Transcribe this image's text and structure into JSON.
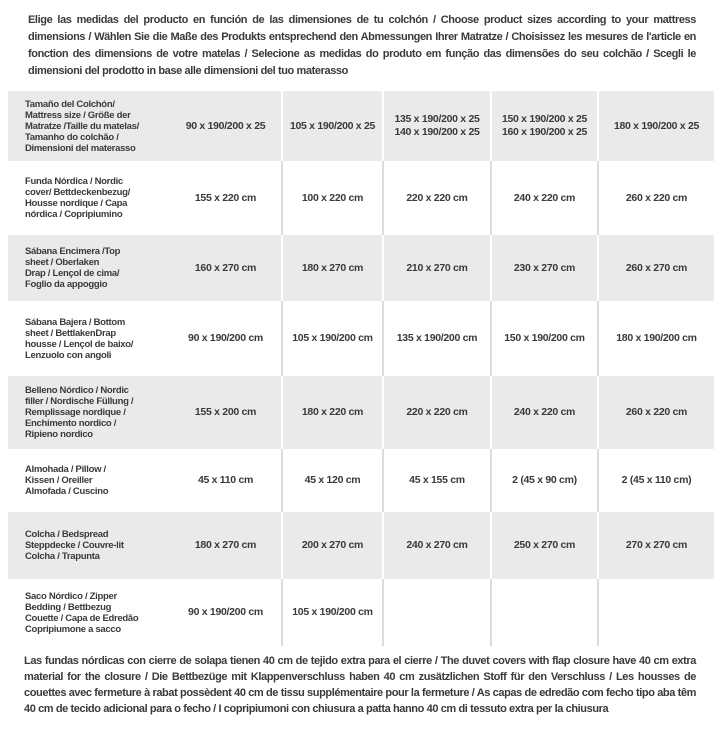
{
  "colors": {
    "row_gray": "#eaeaea",
    "text": "#3a3a3a",
    "divider_on_white": "#dcdcdc",
    "divider_on_gray": "#ffffff",
    "background": "#ffffff"
  },
  "intro": {
    "text": "Elige las medidas del producto en función de las dimensiones de tu colchón / Choose product sizes according to your mattress dimensions / Wählen Sie die Maße des Produkts entsprechend den Abmessungen Ihrer Matratze / Choisissez les mesures de l'article en fonction des dimensions de votre matelas / Selecione as medidas do produto em função das dimensões do seu colchão / Scegli le dimensioni del prodotto in base alle dimensioni del tuo materasso"
  },
  "table": {
    "rows": [
      {
        "label": "Tamaño del Colchón/\nMattress size / Größe der\nMatratze /Taille du matelas/\nTamanho do colchão /\nDimensioni del materasso",
        "values": [
          "90 x 190/200 x 25",
          "105 x 190/200 x 25",
          "135 x 190/200 x 25\n140 x 190/200 x 25",
          "150 x 190/200 x 25\n160 x 190/200 x 25",
          "180 x 190/200 x 25"
        ]
      },
      {
        "label": "Funda Nórdica /  Nordic\ncover/ Bettdeckenbezug/\nHousse nordique  / Capa\nnórdica / Copripiumino",
        "values": [
          "155 x 220 cm",
          "100 x 220 cm",
          "220 x 220 cm",
          "240 x 220 cm",
          "260 x 220 cm"
        ]
      },
      {
        "label": "Sábana Encimera /Top\nsheet / Oberlaken\nDrap / Lençol de cima/\nFoglio da appoggio",
        "values": [
          "160 x 270 cm",
          "180 x 270 cm",
          "210 x 270 cm",
          "230 x 270 cm",
          "260 x 270 cm"
        ]
      },
      {
        "label": "Sábana Bajera / Bottom\nsheet / BettlakenDrap\nhousse / Lençol de baixo/\nLenzuolo con angoli",
        "values": [
          "90 x 190/200 cm",
          "105 x 190/200 cm",
          "135 x 190/200 cm",
          "150 x 190/200 cm",
          "180 x 190/200 cm"
        ]
      },
      {
        "label": "Belleno Nórdico / Nordic\nfiller / Nordische Füllung /\nRemplissage nordique /\nEnchimento nordico /\nRipieno nordico",
        "values": [
          "155 x 200 cm",
          "180 x 220 cm",
          "220 x 220 cm",
          "240 x 220 cm",
          "260 x 220 cm"
        ]
      },
      {
        "label": "Almohada  / Pillow /\nKissen / Oreiller\nAlmofada / Cuscino",
        "values": [
          "45 x 110 cm",
          "45 x 120 cm",
          "45 x 155 cm",
          "2 (45 x 90 cm)",
          "2 (45 x 110 cm)"
        ]
      },
      {
        "label": "Colcha / Bedspread\nSteppdecke / Couvre-lit\nColcha / Trapunta",
        "values": [
          "180 x 270 cm",
          "200 x 270 cm",
          "240 x 270 cm",
          "250 x 270 cm",
          "270 x 270 cm"
        ]
      },
      {
        "label": "Saco Nórdico / Zipper\nBedding / Bettbezug\nCouette  / Capa de Edredão\nCopripiumone a sacco",
        "values": [
          "90 x 190/200 cm",
          "105 x 190/200 cm",
          "",
          "",
          ""
        ]
      }
    ]
  },
  "footnote": {
    "text": "Las fundas nórdicas con cierre de solapa tienen 40 cm de tejido extra para el cierre  / The duvet covers with flap closure have 40 cm extra material for the closure / Die Bettbezüge mit Klappenverschluss haben 40 cm zusätzlichen Stoff für den Verschluss / Les housses de couettes avec fermeture à rabat possèdent 40 cm de tissu supplémentaire pour la fermeture / As capas de edredão com fecho tipo aba têm 40 cm de tecido adicional para o fecho / I copripiumoni con chiusura a patta hanno 40 cm di tessuto extra per la chiusura"
  }
}
